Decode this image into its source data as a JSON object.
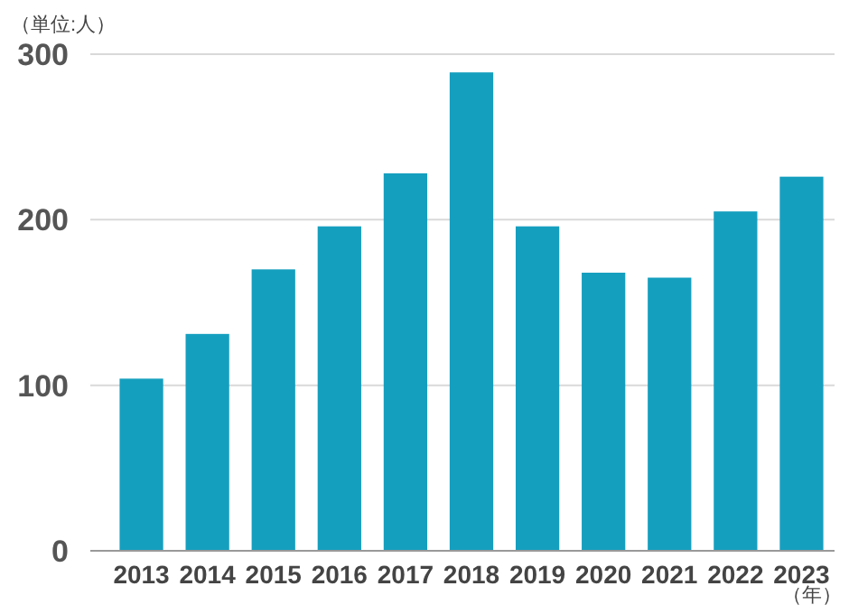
{
  "chart_data": {
    "type": "bar",
    "ylabel": "（単位:人）",
    "xlabel": "（年）",
    "categories": [
      "2013",
      "2014",
      "2015",
      "2016",
      "2017",
      "2018",
      "2019",
      "2020",
      "2021",
      "2022",
      "2023"
    ],
    "values": [
      104,
      131,
      170,
      196,
      228,
      289,
      196,
      168,
      165,
      205,
      226
    ],
    "color": "#159fbf",
    "ylim": [
      0,
      300
    ],
    "yticks": [
      0,
      100,
      200,
      300
    ],
    "grid": "y"
  }
}
